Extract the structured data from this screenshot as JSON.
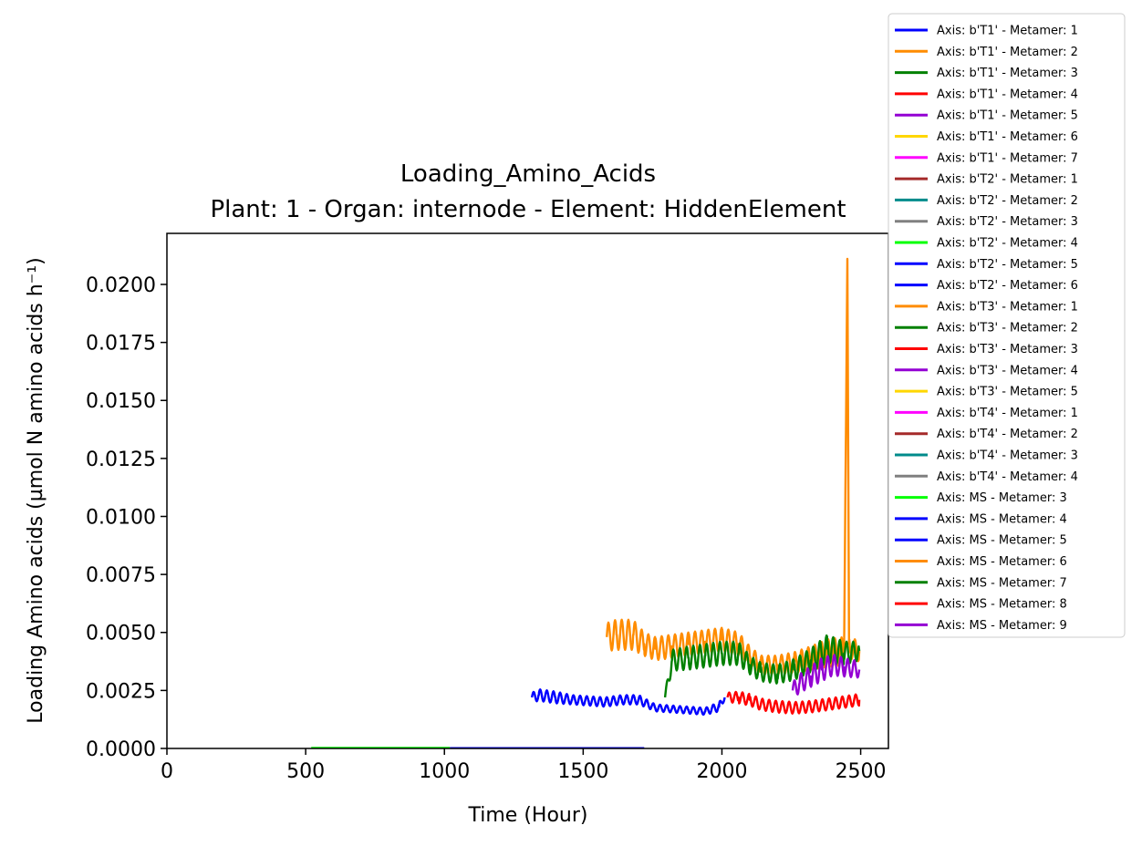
{
  "chart_data": {
    "type": "line",
    "title": "Loading_Amino_Acids",
    "subtitle": "Plant: 1 - Organ: internode - Element: HiddenElement",
    "xlabel": "Time (Hour)",
    "ylabel": "Loading Amino acids (µmol N amino acids h⁻¹)",
    "xlim": [
      0,
      2600
    ],
    "ylim": [
      0,
      0.0222
    ],
    "xticks": [
      0,
      500,
      1000,
      1500,
      2000,
      2500
    ],
    "xtick_labels": [
      "0",
      "500",
      "1000",
      "1500",
      "2000",
      "2500"
    ],
    "yticks": [
      0,
      0.0025,
      0.005,
      0.0075,
      0.01,
      0.0125,
      0.015,
      0.0175,
      0.02
    ],
    "ytick_labels": [
      "0.0000",
      "0.0025",
      "0.0050",
      "0.0075",
      "0.0100",
      "0.0125",
      "0.0150",
      "0.0175",
      "0.0200"
    ],
    "grid": false,
    "legend_position": "outside-top-right",
    "series": [
      {
        "name": "Axis: b'T1' - Metamer: 1",
        "color": "#0000ff",
        "x": [],
        "y": []
      },
      {
        "name": "Axis: b'T1' - Metamer: 2",
        "color": "#ff8c00",
        "x": [],
        "y": []
      },
      {
        "name": "Axis: b'T1' - Metamer: 3",
        "color": "#008000",
        "x": [],
        "y": []
      },
      {
        "name": "Axis: b'T1' - Metamer: 4",
        "color": "#ff0000",
        "x": [],
        "y": []
      },
      {
        "name": "Axis: b'T1' - Metamer: 5",
        "color": "#9400d3",
        "x": [],
        "y": []
      },
      {
        "name": "Axis: b'T1' - Metamer: 6",
        "color": "#ffd700",
        "x": [],
        "y": []
      },
      {
        "name": "Axis: b'T1' - Metamer: 7",
        "color": "#ff00ff",
        "x": [],
        "y": []
      },
      {
        "name": "Axis: b'T2' - Metamer: 1",
        "color": "#a52a2a",
        "x": [],
        "y": []
      },
      {
        "name": "Axis: b'T2' - Metamer: 2",
        "color": "#008b8b",
        "x": [],
        "y": []
      },
      {
        "name": "Axis: b'T2' - Metamer: 3",
        "color": "#808080",
        "x": [],
        "y": []
      },
      {
        "name": "Axis: b'T2' - Metamer: 4",
        "color": "#00ff00",
        "x": [],
        "y": []
      },
      {
        "name": "Axis: b'T2' - Metamer: 5",
        "color": "#0000ff",
        "x": [],
        "y": []
      },
      {
        "name": "Axis: b'T2' - Metamer: 6",
        "color": "#0000ff",
        "x": [],
        "y": []
      },
      {
        "name": "Axis: b'T3' - Metamer: 1",
        "color": "#ff8c00",
        "x": [],
        "y": []
      },
      {
        "name": "Axis: b'T3' - Metamer: 2",
        "color": "#008000",
        "x": [],
        "y": []
      },
      {
        "name": "Axis: b'T3' - Metamer: 3",
        "color": "#ff0000",
        "x": [],
        "y": []
      },
      {
        "name": "Axis: b'T3' - Metamer: 4",
        "color": "#9400d3",
        "x": [],
        "y": []
      },
      {
        "name": "Axis: b'T3' - Metamer: 5",
        "color": "#ffd700",
        "x": [],
        "y": []
      },
      {
        "name": "Axis: b'T4' - Metamer: 1",
        "color": "#ff00ff",
        "x": [],
        "y": []
      },
      {
        "name": "Axis: b'T4' - Metamer: 2",
        "color": "#a52a2a",
        "x": [],
        "y": []
      },
      {
        "name": "Axis: b'T4' - Metamer: 3",
        "color": "#008b8b",
        "x": [],
        "y": []
      },
      {
        "name": "Axis: b'T4' - Metamer: 4",
        "color": "#808080",
        "x": [],
        "y": []
      },
      {
        "name": "Axis: MS - Metamer: 3",
        "color": "#00ff00",
        "x": [
          520,
          1020
        ],
        "y": [
          2e-05,
          2e-05
        ]
      },
      {
        "name": "Axis: MS - Metamer: 4",
        "color": "#0000ff",
        "x": [
          1020,
          1720
        ],
        "y": [
          1e-05,
          1e-05
        ]
      },
      {
        "name": "Axis: MS - Metamer: 5",
        "color": "#0000ff",
        "x": [
          1315,
          1340,
          1400,
          1460,
          1520,
          1580,
          1640,
          1700,
          1760,
          1820,
          1880,
          1940,
          1990,
          2010
        ],
        "y": [
          0.0022,
          0.0023,
          0.0022,
          0.0021,
          0.00205,
          0.002,
          0.0021,
          0.0021,
          0.00175,
          0.0017,
          0.00165,
          0.0016,
          0.0018,
          0.0022
        ],
        "amp": [
          0.0004,
          0.0005,
          0.0005,
          0.0004,
          0.0004,
          0.0004,
          0.0004,
          0.0004,
          0.0003,
          0.0003,
          0.0003,
          0.0003,
          0.0004,
          0.0002
        ]
      },
      {
        "name": "Axis: MS - Metamer: 6",
        "color": "#ff8c00",
        "x": [
          1585,
          1620,
          1680,
          1720,
          1760,
          1820,
          1880,
          1940,
          2000,
          2060,
          2100,
          2140,
          2200,
          2260,
          2320,
          2380,
          2440,
          2452,
          2458,
          2465,
          2495
        ],
        "y": [
          0.0048,
          0.0049,
          0.0049,
          0.0045,
          0.0043,
          0.0044,
          0.0045,
          0.0046,
          0.0047,
          0.0045,
          0.004,
          0.0036,
          0.0036,
          0.0037,
          0.0039,
          0.0041,
          0.0042,
          0.0211,
          0.0045,
          0.0043,
          0.0042
        ],
        "amp": [
          0.0012,
          0.0013,
          0.0013,
          0.001,
          0.001,
          0.001,
          0.001,
          0.001,
          0.001,
          0.001,
          0.0008,
          0.0008,
          0.0008,
          0.0009,
          0.001,
          0.0012,
          0.0012,
          0,
          0.0009,
          0.0009,
          0.0009
        ]
      },
      {
        "name": "Axis: MS - Metamer: 7",
        "color": "#008000",
        "x": [
          1795,
          1820,
          1880,
          1940,
          2000,
          2060,
          2100,
          2140,
          2200,
          2260,
          2320,
          2380,
          2440,
          2495
        ],
        "y": [
          0.0022,
          0.0038,
          0.0039,
          0.004,
          0.0041,
          0.0041,
          0.0036,
          0.0033,
          0.0032,
          0.0034,
          0.0038,
          0.0043,
          0.0041,
          0.0042
        ],
        "amp": [
          0.0003,
          0.0009,
          0.001,
          0.001,
          0.001,
          0.001,
          0.0008,
          0.0008,
          0.0008,
          0.0009,
          0.001,
          0.0012,
          0.001,
          0.0008
        ]
      },
      {
        "name": "Axis: MS - Metamer: 8",
        "color": "#ff0000",
        "x": [
          2020,
          2060,
          2100,
          2140,
          2200,
          2260,
          2320,
          2380,
          2440,
          2495
        ],
        "y": [
          0.0022,
          0.0022,
          0.0021,
          0.0019,
          0.0018,
          0.00175,
          0.0018,
          0.0019,
          0.002,
          0.0021
        ],
        "amp": [
          0.0004,
          0.0005,
          0.0005,
          0.0005,
          0.0005,
          0.0005,
          0.0005,
          0.0005,
          0.0005,
          0.0005
        ]
      },
      {
        "name": "Axis: MS - Metamer: 9",
        "color": "#9400d3",
        "x": [
          2255,
          2280,
          2320,
          2360,
          2400,
          2440,
          2495
        ],
        "y": [
          0.0025,
          0.0028,
          0.0031,
          0.0034,
          0.0036,
          0.0035,
          0.0034
        ],
        "amp": [
          0.0007,
          0.0008,
          0.0009,
          0.001,
          0.0009,
          0.0008,
          0.0007
        ]
      }
    ]
  }
}
